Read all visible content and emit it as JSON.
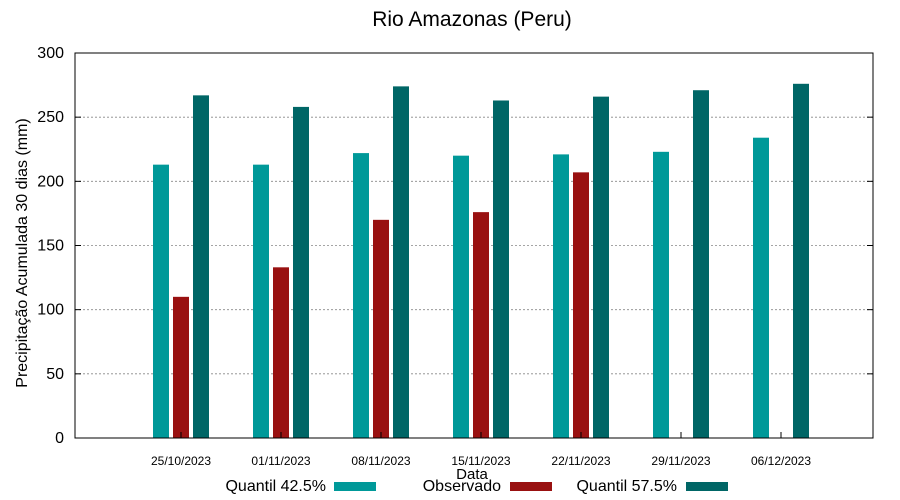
{
  "chart_data": {
    "type": "bar",
    "title": "Rio Amazonas (Peru)",
    "xlabel": "Data",
    "ylabel": "Precipitação Acumulada 30 dias (mm)",
    "ylim": [
      0,
      300
    ],
    "yticks": [
      0,
      50,
      100,
      150,
      200,
      250,
      300
    ],
    "grid": true,
    "legend_position": "bottom",
    "categories": [
      "25/10/2023",
      "01/11/2023",
      "08/11/2023",
      "15/11/2023",
      "22/11/2023",
      "29/11/2023",
      "06/12/2023"
    ],
    "series": [
      {
        "name": "Quantil 42.5%",
        "color": "#009999",
        "values": [
          213,
          213,
          222,
          220,
          221,
          223,
          234
        ]
      },
      {
        "name": "Observado",
        "color": "#991111",
        "values": [
          110,
          133,
          170,
          176,
          207,
          null,
          null
        ]
      },
      {
        "name": "Quantil 57.5%",
        "color": "#006666",
        "values": [
          267,
          258,
          274,
          263,
          266,
          271,
          276
        ]
      }
    ]
  }
}
